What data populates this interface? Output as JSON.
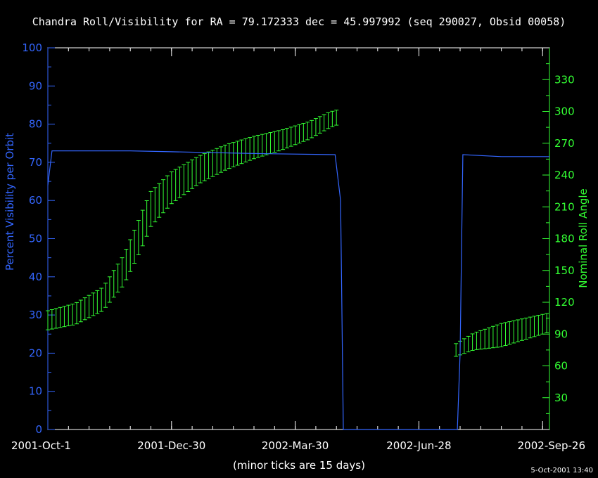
{
  "colors": {
    "background": "#000000",
    "frame": "#ffffff",
    "visibility": "#3366ff",
    "roll": "#33ff33",
    "text": "#ffffff"
  },
  "chart_data": {
    "type": "line",
    "title": "Chandra Roll/Visibility for RA = 79.172333 dec = 45.997992 (seq 290027, Obsid 00058)",
    "xlabel": "(minor ticks are 15 days)",
    "ylabel_left": "Percent Visibility per Orbit",
    "ylabel_right": "Nominal Roll Angle",
    "timestamp": "5-Oct-2001 13:40",
    "x_unit": "days since 2001-Oct-1",
    "xlim": [
      0,
      365
    ],
    "x_major_ticks": [
      {
        "day": 0,
        "label": "2001-Oct-1"
      },
      {
        "day": 90,
        "label": "2001-Dec-30"
      },
      {
        "day": 180,
        "label": "2002-Mar-30"
      },
      {
        "day": 270,
        "label": "2002-Jun-28"
      },
      {
        "day": 360,
        "label": "2002-Sep-26"
      }
    ],
    "x_minor_step": 15,
    "y_left": {
      "lim": [
        0,
        100
      ],
      "ticks": [
        0,
        10,
        20,
        30,
        40,
        50,
        60,
        70,
        80,
        90,
        100
      ]
    },
    "y_right": {
      "lim": [
        0,
        360
      ],
      "ticks": [
        30,
        60,
        90,
        120,
        150,
        180,
        210,
        240,
        270,
        300,
        330
      ]
    },
    "series": [
      {
        "name": "Percent Visibility per Orbit",
        "axis": "left",
        "points": [
          [
            0,
            64
          ],
          [
            3,
            73
          ],
          [
            60,
            73
          ],
          [
            150,
            72.3
          ],
          [
            209,
            72
          ],
          [
            213,
            60
          ],
          [
            215,
            0
          ],
          [
            298,
            0
          ],
          [
            300,
            20
          ],
          [
            302,
            72
          ],
          [
            330,
            71.5
          ],
          [
            365,
            71.5
          ]
        ]
      },
      {
        "name": "Nominal Roll Angle",
        "axis": "right",
        "type": "errorbar",
        "segments": [
          {
            "x_start": 0,
            "x_end": 212,
            "step": 3,
            "center": [
              [
                0,
                103
              ],
              [
                20,
                109
              ],
              [
                40,
                123
              ],
              [
                55,
                150
              ],
              [
                65,
                178
              ],
              [
                75,
                208
              ],
              [
                90,
                228
              ],
              [
                110,
                245
              ],
              [
                130,
                257
              ],
              [
                150,
                266
              ],
              [
                170,
                273
              ],
              [
                190,
                282
              ],
              [
                205,
                292
              ],
              [
                212,
                295
              ]
            ],
            "halfwidth": [
              [
                0,
                9
              ],
              [
                40,
                11
              ],
              [
                70,
                17
              ],
              [
                110,
                13
              ],
              [
                160,
                10
              ],
              [
                212,
                7
              ]
            ]
          },
          {
            "x_start": 297,
            "x_end": 365,
            "step": 3,
            "center": [
              [
                297,
                75
              ],
              [
                310,
                83
              ],
              [
                330,
                89
              ],
              [
                365,
                101
              ]
            ],
            "halfwidth": [
              [
                297,
                6
              ],
              [
                330,
                11
              ],
              [
                365,
                9
              ]
            ]
          }
        ]
      }
    ]
  }
}
